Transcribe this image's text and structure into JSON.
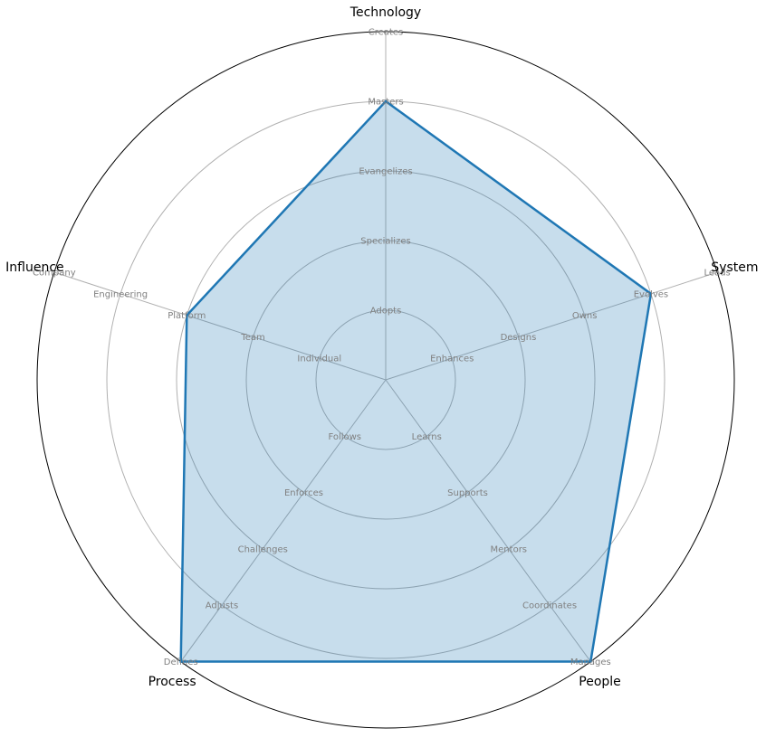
{
  "chart_data": {
    "type": "radar",
    "axes": [
      {
        "name": "Technology",
        "levels": [
          "Adopts",
          "Specializes",
          "Evangelizes",
          "Masters",
          "Creates"
        ],
        "value": 4
      },
      {
        "name": "System",
        "levels": [
          "Enhances",
          "Designs",
          "Owns",
          "Evolves",
          "Leads"
        ],
        "value": 4
      },
      {
        "name": "People",
        "levels": [
          "Learns",
          "Supports",
          "Mentors",
          "Coordinates",
          "Manages"
        ],
        "value": 5
      },
      {
        "name": "Process",
        "levels": [
          "Follows",
          "Enforces",
          "Challenges",
          "Adjusts",
          "Defines"
        ],
        "value": 5
      },
      {
        "name": "Influence",
        "levels": [
          "Individual",
          "Team",
          "Platform",
          "Engineering",
          "Company"
        ],
        "value": 3
      }
    ],
    "range": [
      0,
      5
    ],
    "grid": true,
    "colors": {
      "line": "#1f77b4",
      "fill": "#1f77b4",
      "grid": "#b0b0b0",
      "outer": "#000000",
      "tick": "#808080"
    }
  }
}
